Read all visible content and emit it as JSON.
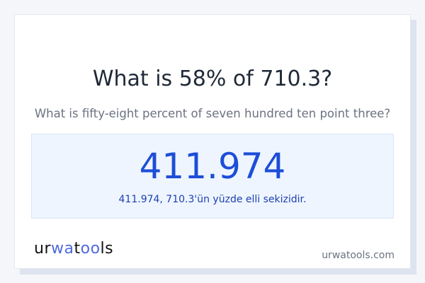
{
  "title": "What is 58% of 710.3?",
  "subtitle": "What is fifty-eight percent of seven hundred ten point three?",
  "result": {
    "value": "411.974",
    "sentence": "411.974, 710.3'ün yüzde elli sekizidir."
  },
  "footer": {
    "logo": "urwatools",
    "site": "urwatools.com"
  },
  "colors": {
    "accent": "#1d4ed8",
    "brand": "#4f6ae0"
  }
}
